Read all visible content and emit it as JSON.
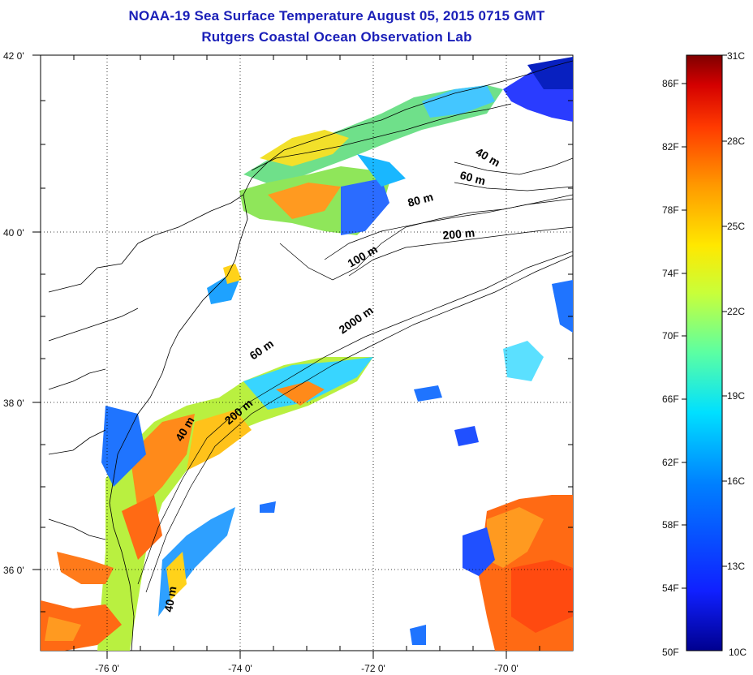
{
  "title": {
    "line1": "NOAA-19 Sea Surface Temperature August 05, 2015 0715 GMT",
    "line2": "Rutgers Coastal Ocean Observation Lab"
  },
  "map": {
    "lon_ticks": [
      "-76 0'",
      "-74 0'",
      "-72 0'",
      "-70 0'"
    ],
    "lat_ticks": [
      "42 0'",
      "40 0'",
      "38 0'",
      "36 0'"
    ],
    "contour_labels": [
      "40 m",
      "60 m",
      "80 m",
      "200 m",
      "100 m",
      "2000 m",
      "60 m",
      "200 m",
      "40 m",
      "40 m"
    ]
  },
  "colorbar": {
    "fahrenheit": [
      "86F",
      "82F",
      "78F",
      "74F",
      "70F",
      "66F",
      "62F",
      "58F",
      "54F",
      "50F"
    ],
    "celsius": [
      "31C",
      "28C",
      "25C",
      "22C",
      "19C",
      "16C",
      "13C",
      "10C"
    ],
    "colors": [
      "#7f0000",
      "#d40000",
      "#ff3a00",
      "#ff9a00",
      "#ffe800",
      "#c8ff3a",
      "#5bffa3",
      "#00e0ff",
      "#0080ff",
      "#1020ff",
      "#00008f"
    ]
  }
}
